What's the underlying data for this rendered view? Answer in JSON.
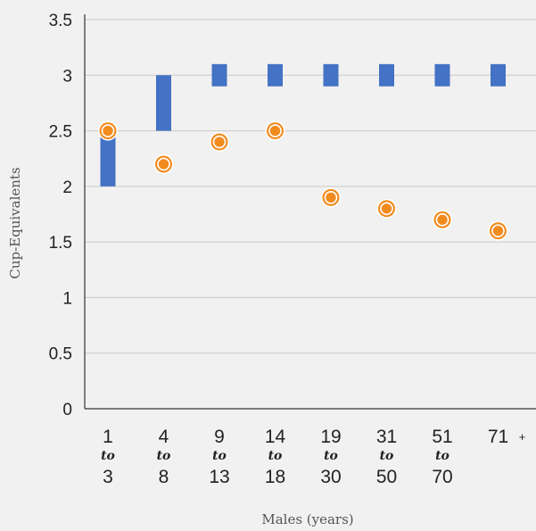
{
  "chart_data": {
    "type": "floating-bar-with-points",
    "title": "",
    "xlabel": "Males (years)",
    "ylabel": "Cup-Equivalents",
    "ylim": [
      0,
      3.5
    ],
    "yticks": [
      "0",
      "0.5",
      "1",
      "1.5",
      "2",
      "2.5",
      "3",
      "3.5"
    ],
    "grid": "horizontal",
    "categories": [
      {
        "start": "1",
        "connector": "to",
        "end": "3"
      },
      {
        "start": "4",
        "connector": "to",
        "end": "8"
      },
      {
        "start": "9",
        "connector": "to",
        "end": "13"
      },
      {
        "start": "14",
        "connector": "to",
        "end": "18"
      },
      {
        "start": "19",
        "connector": "to",
        "end": "30"
      },
      {
        "start": "31",
        "connector": "to",
        "end": "50"
      },
      {
        "start": "51",
        "connector": "to",
        "end": "70"
      },
      {
        "start": "71",
        "suffix": "+"
      }
    ],
    "series": [
      {
        "kind": "range",
        "color": "#4472c4",
        "values": [
          [
            2,
            2.5
          ],
          [
            2.5,
            3
          ],
          [
            2.9,
            3.1
          ],
          [
            2.9,
            3.1
          ],
          [
            2.9,
            3.1
          ],
          [
            2.9,
            3.1
          ],
          [
            2.9,
            3.1
          ],
          [
            2.9,
            3.1
          ]
        ]
      },
      {
        "kind": "point",
        "color": "#f28b1e",
        "values": [
          2.5,
          2.2,
          2.4,
          2.5,
          1.9,
          1.8,
          1.7,
          1.6
        ]
      }
    ]
  }
}
